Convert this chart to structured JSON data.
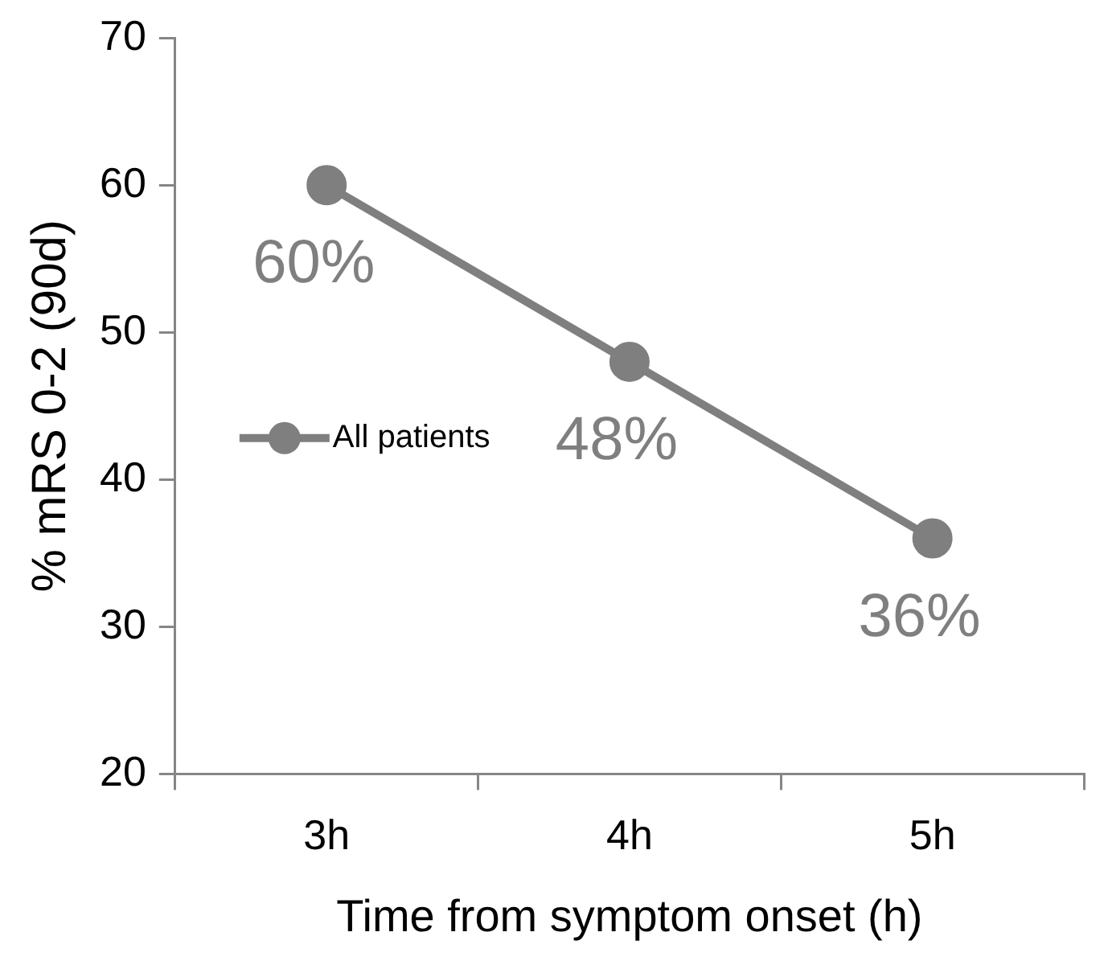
{
  "chart_data": {
    "type": "line",
    "xlabel": "Time from symptom onset (h)",
    "ylabel": "% mRS 0-2 (90d)",
    "categories": [
      "3h",
      "4h",
      "5h"
    ],
    "series": [
      {
        "name": "All patients",
        "color": "#7f7f7f",
        "values": [
          60,
          48,
          36
        ],
        "value_labels": [
          "60%",
          "48%",
          "36%"
        ]
      }
    ],
    "ylim": [
      20,
      70
    ],
    "yticks": [
      20,
      30,
      40,
      50,
      60,
      70
    ],
    "grid": false,
    "legend": "left",
    "marker": "circle",
    "line_style": "solid"
  }
}
